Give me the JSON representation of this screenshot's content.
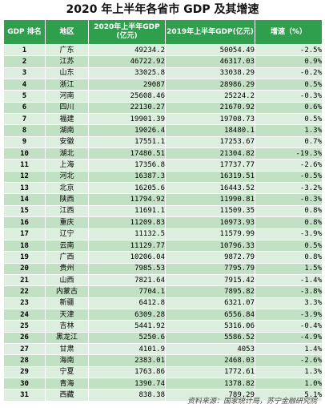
{
  "title": "2020 年上半年各省市 GDP 及其增速",
  "headers": {
    "rank": "GDP 排名",
    "region": "地区",
    "gdp2020": "2020年上半年GDP\n(亿元)",
    "gdp2019": "2019年上半年GDP(亿元)",
    "growth": "增速（%）"
  },
  "rows": [
    {
      "rank": "1",
      "region": "广东",
      "gdp2020": "49234.2",
      "gdp2019": "50054.49",
      "growth": "-2.5%"
    },
    {
      "rank": "2",
      "region": "江苏",
      "gdp2020": "46722.92",
      "gdp2019": "46317.03",
      "growth": "0.9%"
    },
    {
      "rank": "3",
      "region": "山东",
      "gdp2020": "33025.8",
      "gdp2019": "33038.29",
      "growth": "-0.2%"
    },
    {
      "rank": "4",
      "region": "浙江",
      "gdp2020": "29087",
      "gdp2019": "28986.29",
      "growth": "0.5%"
    },
    {
      "rank": "5",
      "region": "河南",
      "gdp2020": "25608.46",
      "gdp2019": "25224.2",
      "growth": "-0.3%"
    },
    {
      "rank": "6",
      "region": "四川",
      "gdp2020": "22130.27",
      "gdp2019": "21670.92",
      "growth": "0.6%"
    },
    {
      "rank": "7",
      "region": "福建",
      "gdp2020": "19901.39",
      "gdp2019": "19708.73",
      "growth": "0.5%"
    },
    {
      "rank": "8",
      "region": "湖南",
      "gdp2020": "19026.4",
      "gdp2019": "18480.1",
      "growth": "1.3%"
    },
    {
      "rank": "9",
      "region": "安徽",
      "gdp2020": "17551.1",
      "gdp2019": "17253.67",
      "growth": "0.7%"
    },
    {
      "rank": "10",
      "region": "湖北",
      "gdp2020": "17480.51",
      "gdp2019": "21304.82",
      "growth": "-19.3%"
    },
    {
      "rank": "11",
      "region": "上海",
      "gdp2020": "17356.8",
      "gdp2019": "17737.77",
      "growth": "-2.6%"
    },
    {
      "rank": "12",
      "region": "河北",
      "gdp2020": "16387.3",
      "gdp2019": "16319.51",
      "growth": "-0.5%"
    },
    {
      "rank": "13",
      "region": "北京",
      "gdp2020": "16205.6",
      "gdp2019": "16443.52",
      "growth": "-3.2%"
    },
    {
      "rank": "14",
      "region": "陕西",
      "gdp2020": "11794.92",
      "gdp2019": "11990.81",
      "growth": "-0.3%"
    },
    {
      "rank": "15",
      "region": "江西",
      "gdp2020": "11691.1",
      "gdp2019": "11509.35",
      "growth": "0.8%"
    },
    {
      "rank": "16",
      "region": "重庆",
      "gdp2020": "11209.83",
      "gdp2019": "10973.93",
      "growth": "0.8%"
    },
    {
      "rank": "17",
      "region": "辽宁",
      "gdp2020": "11132.5",
      "gdp2019": "11579.99",
      "growth": "-3.9%"
    },
    {
      "rank": "18",
      "region": "云南",
      "gdp2020": "11129.77",
      "gdp2019": "10796.33",
      "growth": "0.5%"
    },
    {
      "rank": "19",
      "region": "广西",
      "gdp2020": "10206.04",
      "gdp2019": "9872.79",
      "growth": "0.8%"
    },
    {
      "rank": "20",
      "region": "贵州",
      "gdp2020": "7985.53",
      "gdp2019": "7795.79",
      "growth": "1.5%"
    },
    {
      "rank": "21",
      "region": "山西",
      "gdp2020": "7821.64",
      "gdp2019": "7915.42",
      "growth": "-1.4%"
    },
    {
      "rank": "22",
      "region": "内蒙古",
      "gdp2020": "7704.1",
      "gdp2019": "7895.82",
      "growth": "-3.8%"
    },
    {
      "rank": "23",
      "region": "新疆",
      "gdp2020": "6412.8",
      "gdp2019": "6321.07",
      "growth": "3.3%"
    },
    {
      "rank": "24",
      "region": "天津",
      "gdp2020": "6309.28",
      "gdp2019": "6556.84",
      "growth": "-3.9%"
    },
    {
      "rank": "25",
      "region": "吉林",
      "gdp2020": "5441.92",
      "gdp2019": "5316.06",
      "growth": "-0.4%"
    },
    {
      "rank": "26",
      "region": "黑龙江",
      "gdp2020": "5250.6",
      "gdp2019": "5586.52",
      "growth": "-4.9%"
    },
    {
      "rank": "27",
      "region": "甘肃",
      "gdp2020": "4101.9",
      "gdp2019": "4053",
      "growth": "1.4%"
    },
    {
      "rank": "28",
      "region": "海南",
      "gdp2020": "2383.01",
      "gdp2019": "2468.03",
      "growth": "-2.6%"
    },
    {
      "rank": "29",
      "region": "宁夏",
      "gdp2020": "1763.86",
      "gdp2019": "1772.61",
      "growth": "1.3%"
    },
    {
      "rank": "30",
      "region": "青海",
      "gdp2020": "1390.74",
      "gdp2019": "1378.82",
      "growth": "1.0%"
    },
    {
      "rank": "31",
      "region": "西藏",
      "gdp2020": "838.38",
      "gdp2019": "789.29",
      "growth": "5.1%"
    }
  ],
  "source": "资料来源：国家统计局，苏宁金融研究院",
  "colors": {
    "header_bg": "#2f9e4d",
    "row_light": "#dceedd",
    "row_dark": "#c2e1c4"
  }
}
